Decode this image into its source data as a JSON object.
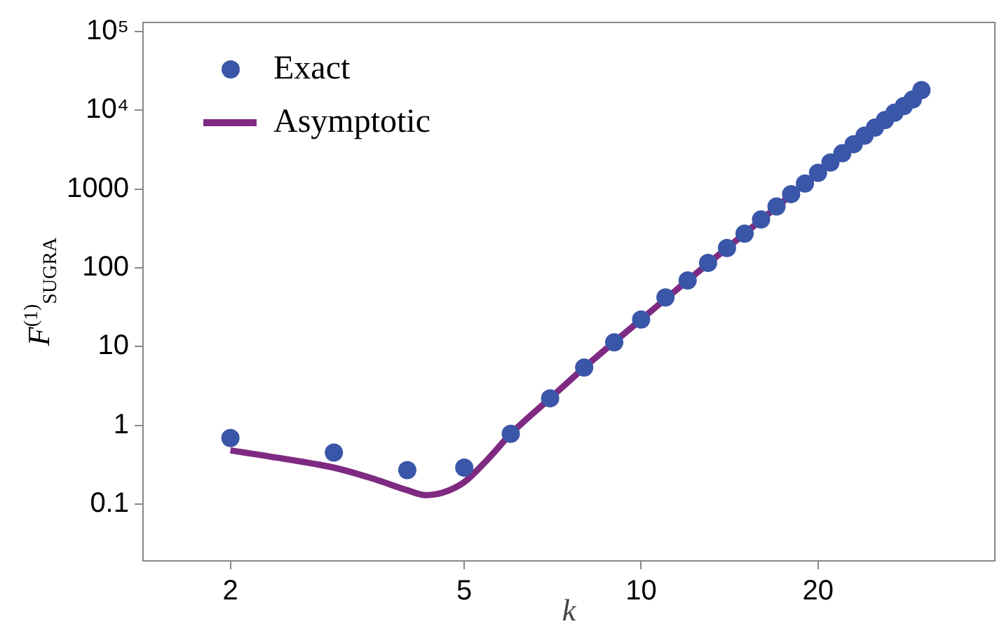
{
  "chart_data": {
    "type": "scatter",
    "xlabel": "k",
    "ylabel": "F$^{(1)}$$_{SUGRA}$",
    "log": "xy",
    "xlim": [
      1.42,
      40
    ],
    "ylim": [
      0.019,
      130000
    ],
    "xticks": [
      2,
      5,
      10,
      20
    ],
    "yticks": [
      0.1,
      1,
      10,
      100,
      1000,
      {
        "value": 10000,
        "label": "10⁴"
      },
      {
        "value": 100000,
        "label": "10⁵"
      }
    ],
    "grid": false,
    "legend": "top left",
    "series": [
      {
        "name": "Exact",
        "type": "scatter",
        "marker": "circle",
        "color": "#3a56a8",
        "x": [
          2,
          3,
          4,
          5,
          6,
          7,
          8,
          9,
          10,
          11,
          12,
          13,
          14,
          15,
          16,
          17,
          18,
          19,
          20,
          21,
          22,
          23,
          24,
          25,
          26,
          27,
          28,
          29,
          30
        ],
        "values": [
          0.69,
          0.45,
          0.27,
          0.29,
          0.78,
          2.2,
          5.4,
          11.3,
          22,
          42,
          69,
          115,
          178,
          271,
          410,
          600,
          860,
          1170,
          1600,
          2170,
          2840,
          3700,
          4750,
          6000,
          7500,
          9300,
          11300,
          13700,
          18000
        ]
      },
      {
        "name": "Asymptotic",
        "type": "line",
        "marker": "none",
        "line_style": "solid",
        "color": "#7f2a82",
        "x": [
          2,
          2.5,
          3,
          3.5,
          4,
          4.3,
          4.6,
          5,
          5.5,
          6,
          7,
          8,
          10,
          12,
          15,
          20,
          25,
          30
        ],
        "values": [
          0.48,
          0.37,
          0.29,
          0.21,
          0.15,
          0.13,
          0.14,
          0.19,
          0.38,
          0.78,
          2.2,
          5.4,
          22,
          69,
          271,
          1600,
          6000,
          18000
        ]
      }
    ]
  }
}
